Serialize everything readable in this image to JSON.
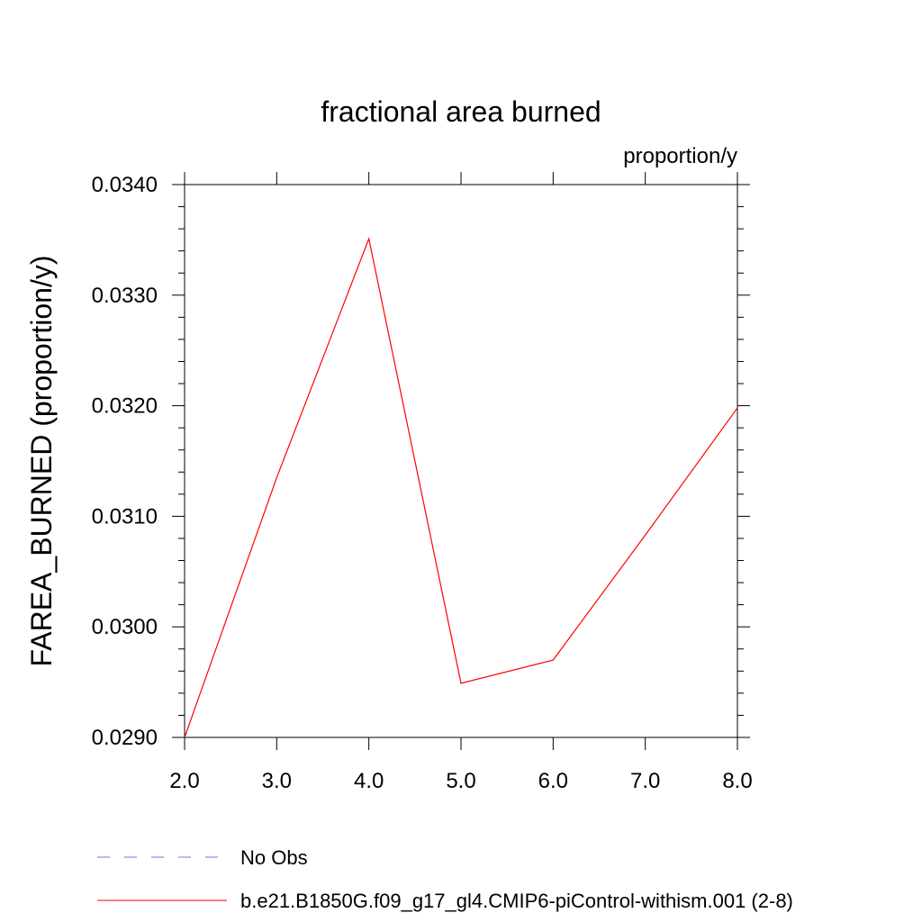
{
  "chart_data": {
    "type": "line",
    "title": "fractional area burned",
    "units_label": "proportion/y",
    "xlabel": "",
    "ylabel": "FAREA_BURNED  (proportion/y)",
    "xlim": [
      2.0,
      8.0
    ],
    "ylim": [
      0.029,
      0.034
    ],
    "x_ticks": [
      2.0,
      3.0,
      4.0,
      5.0,
      6.0,
      7.0,
      8.0
    ],
    "x_tick_labels": [
      "2.0",
      "3.0",
      "4.0",
      "5.0",
      "6.0",
      "7.0",
      "8.0"
    ],
    "y_ticks": [
      0.029,
      0.03,
      0.031,
      0.032,
      0.033,
      0.034
    ],
    "y_tick_labels": [
      "0.0290",
      "0.0300",
      "0.0310",
      "0.0320",
      "0.0330",
      "0.0340"
    ],
    "grid": false,
    "legend_position": "bottom",
    "series": [
      {
        "name": "b.e21.B1850G.f09_g17_gl4.CMIP6-piControl-withism.001 (2-8)",
        "color": "#ff0000",
        "style": "solid",
        "x": [
          2.0,
          3.0,
          4.0,
          5.0,
          6.0,
          7.0,
          8.0
        ],
        "y": [
          0.029,
          0.03135,
          0.03351,
          0.02949,
          0.0297,
          0.03083,
          0.03198
        ]
      }
    ],
    "legend": [
      {
        "label": "No Obs",
        "color": "#7b68ee",
        "style": "dashed"
      },
      {
        "label": "b.e21.B1850G.f09_g17_gl4.CMIP6-piControl-withism.001 (2-8)",
        "color": "#ff0000",
        "style": "solid"
      }
    ]
  }
}
